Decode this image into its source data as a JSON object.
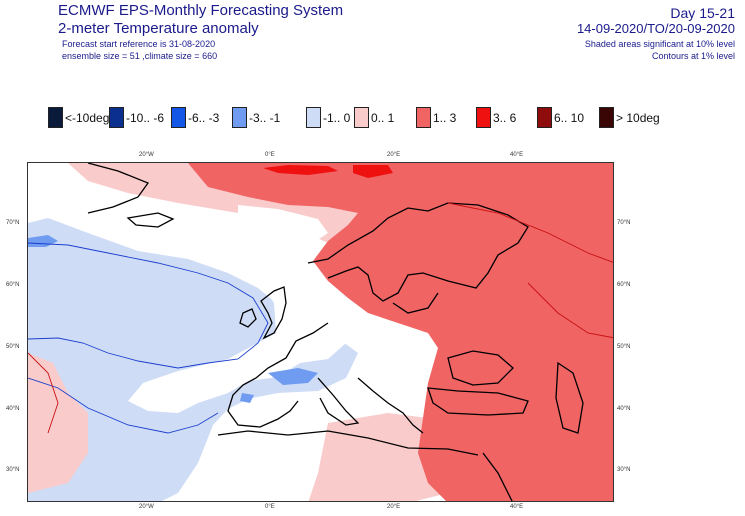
{
  "header": {
    "title": "ECMWF EPS-Monthly Forecasting System",
    "subtitle": "2-meter Temperature anomaly",
    "forecast_ref": "Forecast start reference is 31-08-2020",
    "ensemble": "ensemble size = 51  ,climate size = 660",
    "day_range": "Day 15-21",
    "date_range": "14-09-2020/TO/20-09-2020",
    "significance_shaded": "Shaded areas significant at 10% level",
    "significance_contours": "Contours at 1% level"
  },
  "legend": [
    {
      "label": "<-10deg",
      "color": "#0a1a3a"
    },
    {
      "label": "-10.. -6",
      "color": "#0b2f8f"
    },
    {
      "label": "-6.. -3",
      "color": "#1257e6"
    },
    {
      "label": "-3.. -1",
      "color": "#6f9bf0"
    },
    {
      "label": "-1..  0",
      "color": "#cfdcf6"
    },
    {
      "label": "0..  1",
      "color": "#f9cbcb"
    },
    {
      "label": "1..  3",
      "color": "#f06464"
    },
    {
      "label": "3..  6",
      "color": "#ef1010"
    },
    {
      "label": "6.. 10",
      "color": "#8e0c0c"
    },
    {
      "label": "> 10deg",
      "color": "#3a0505"
    }
  ],
  "map": {
    "lon_ticks_top": [
      "20°W",
      "0°E",
      "20°E",
      "40°E"
    ],
    "lon_ticks_bottom": [
      "20°W",
      "0°E",
      "20°E",
      "40°E"
    ],
    "lat_ticks_left": [
      "70°N",
      "60°N",
      "50°N",
      "40°N",
      "30°N"
    ],
    "lat_ticks_right": [
      "70°N",
      "60°N",
      "50°N",
      "40°N",
      "30°N"
    ],
    "colors": {
      "light_blue": "#cfdcf6",
      "mid_blue": "#6f9bf0",
      "pink": "#f9cbcb",
      "red": "#f06464",
      "bright_red": "#ef1010",
      "coast": "#000000"
    }
  }
}
